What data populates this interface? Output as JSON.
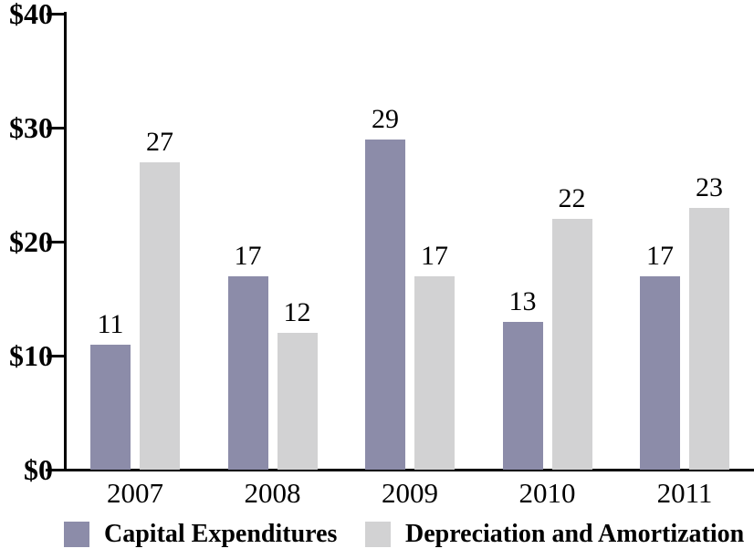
{
  "chart_data": {
    "type": "bar",
    "title": "",
    "xlabel": "",
    "ylabel": "",
    "categories": [
      "2007",
      "2008",
      "2009",
      "2010",
      "2011"
    ],
    "series": [
      {
        "name": "Capital Expenditures",
        "color": "#8C8CA9",
        "values": [
          11,
          17,
          29,
          13,
          17
        ]
      },
      {
        "name": "Depreciation and Amortization",
        "color": "#D2D2D3",
        "values": [
          27,
          12,
          17,
          22,
          23
        ]
      }
    ],
    "ylim": [
      0,
      40
    ],
    "y_ticks": [
      {
        "value": 0,
        "label": "$0"
      },
      {
        "value": 10,
        "label": "$10"
      },
      {
        "value": 20,
        "label": "$20"
      },
      {
        "value": 30,
        "label": "$30"
      },
      {
        "value": 40,
        "label": "$40"
      }
    ],
    "value_labels_shown": true,
    "grid": false,
    "legend_position": "bottom"
  },
  "colors": {
    "axis": "#000000",
    "text": "#000000",
    "background": "#FFFFFF",
    "series_1": "#8C8CA9",
    "series_2": "#D2D2D3"
  }
}
